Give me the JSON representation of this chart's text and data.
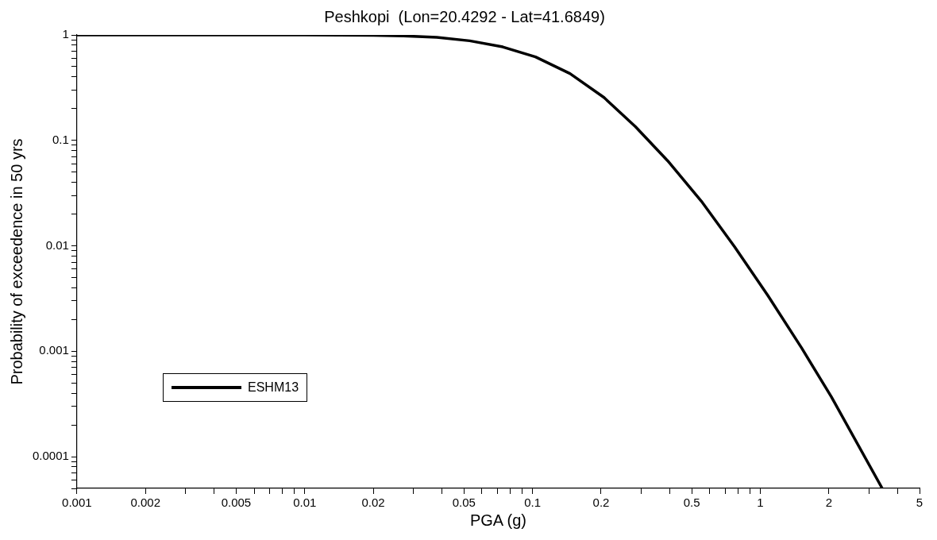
{
  "chart_data": {
    "type": "line",
    "title": "Peshkopi  (Lon=20.4292 - Lat=41.6849)",
    "xlabel": "PGA (g)",
    "ylabel": "Probability of exceedence in 50 yrs",
    "log": "xy",
    "legend": "bottom left",
    "marker": "none",
    "line_style": "solid",
    "xlim": [
      0.001,
      5
    ],
    "ylim": [
      5e-05,
      1
    ],
    "xticks": [
      0.001,
      0.002,
      {
        "value": 0.003,
        "label": null
      },
      {
        "value": 0.004,
        "label": null
      },
      0.005,
      {
        "value": 0.006,
        "label": null
      },
      {
        "value": 0.007,
        "label": null
      },
      {
        "value": 0.008,
        "label": null
      },
      {
        "value": 0.009,
        "label": null
      },
      0.01,
      0.02,
      {
        "value": 0.03,
        "label": null
      },
      {
        "value": 0.04,
        "label": null
      },
      0.05,
      {
        "value": 0.06,
        "label": null
      },
      {
        "value": 0.07,
        "label": null
      },
      {
        "value": 0.08,
        "label": null
      },
      {
        "value": 0.09,
        "label": null
      },
      0.1,
      0.2,
      {
        "value": 0.3,
        "label": null
      },
      {
        "value": 0.4,
        "label": null
      },
      0.5,
      {
        "value": 0.6,
        "label": null
      },
      {
        "value": 0.7,
        "label": null
      },
      {
        "value": 0.8,
        "label": null
      },
      {
        "value": 0.9,
        "label": null
      },
      1,
      2,
      {
        "value": 3,
        "label": null
      },
      {
        "value": 4,
        "label": null
      },
      5
    ],
    "yticks": [
      {
        "value": 5e-05,
        "label": null
      },
      {
        "value": 6e-05,
        "label": null
      },
      {
        "value": 7e-05,
        "label": null
      },
      {
        "value": 8e-05,
        "label": null
      },
      {
        "value": 9e-05,
        "label": null
      },
      0.0001,
      {
        "value": 0.0002,
        "label": null
      },
      {
        "value": 0.0003,
        "label": null
      },
      {
        "value": 0.0004,
        "label": null
      },
      {
        "value": 0.0005,
        "label": null
      },
      {
        "value": 0.0006,
        "label": null
      },
      {
        "value": 0.0007,
        "label": null
      },
      {
        "value": 0.0008,
        "label": null
      },
      {
        "value": 0.0009,
        "label": null
      },
      0.001,
      {
        "value": 0.002,
        "label": null
      },
      {
        "value": 0.003,
        "label": null
      },
      {
        "value": 0.004,
        "label": null
      },
      {
        "value": 0.005,
        "label": null
      },
      {
        "value": 0.006,
        "label": null
      },
      {
        "value": 0.007,
        "label": null
      },
      {
        "value": 0.008,
        "label": null
      },
      {
        "value": 0.009,
        "label": null
      },
      0.01,
      {
        "value": 0.02,
        "label": null
      },
      {
        "value": 0.03,
        "label": null
      },
      {
        "value": 0.04,
        "label": null
      },
      {
        "value": 0.05,
        "label": null
      },
      {
        "value": 0.06,
        "label": null
      },
      {
        "value": 0.07,
        "label": null
      },
      {
        "value": 0.08,
        "label": null
      },
      {
        "value": 0.09,
        "label": null
      },
      0.1,
      {
        "value": 0.2,
        "label": null
      },
      {
        "value": 0.3,
        "label": null
      },
      {
        "value": 0.4,
        "label": null
      },
      {
        "value": 0.5,
        "label": null
      },
      {
        "value": 0.6,
        "label": null
      },
      {
        "value": 0.7,
        "label": null
      },
      {
        "value": 0.8,
        "label": null
      },
      {
        "value": 0.9,
        "label": null
      },
      1
    ],
    "series": [
      {
        "name": "ESHM13",
        "color": "#000000",
        "x": [
          0.001,
          0.01,
          0.02,
          0.027,
          0.038,
          0.053,
          0.074,
          0.103,
          0.146,
          0.206,
          0.283,
          0.392,
          0.551,
          0.771,
          1.08,
          1.52,
          2.05,
          3.43
        ],
        "values": [
          1,
          0.999,
          0.99,
          0.98,
          0.95,
          0.88,
          0.77,
          0.62,
          0.43,
          0.255,
          0.135,
          0.064,
          0.0265,
          0.0098,
          0.00337,
          0.00107,
          0.00037,
          5e-05
        ]
      }
    ]
  }
}
